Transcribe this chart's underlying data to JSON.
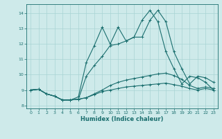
{
  "xlabel": "Humidex (Indice chaleur)",
  "bg_color": "#ceeaea",
  "line_color": "#1a6e6e",
  "grid_color": "#a8d4d4",
  "xlim": [
    -0.5,
    23.5
  ],
  "ylim": [
    7.8,
    14.6
  ],
  "yticks": [
    8,
    9,
    10,
    11,
    12,
    13,
    14
  ],
  "xticks": [
    0,
    1,
    2,
    3,
    4,
    5,
    6,
    7,
    8,
    9,
    10,
    11,
    12,
    13,
    14,
    15,
    16,
    17,
    18,
    19,
    20,
    21,
    22,
    23
  ],
  "series": [
    [
      9.0,
      9.05,
      8.75,
      8.6,
      8.35,
      8.35,
      8.4,
      8.5,
      8.7,
      8.9,
      9.0,
      9.1,
      9.2,
      9.25,
      9.3,
      9.35,
      9.4,
      9.45,
      9.35,
      9.25,
      9.1,
      9.0,
      9.1,
      9.0
    ],
    [
      9.0,
      9.05,
      8.75,
      8.6,
      8.35,
      8.35,
      8.4,
      8.5,
      8.75,
      9.0,
      9.3,
      9.5,
      9.65,
      9.75,
      9.85,
      9.95,
      10.05,
      10.1,
      9.95,
      9.7,
      9.3,
      9.1,
      9.2,
      9.1
    ],
    [
      9.0,
      9.05,
      8.75,
      8.6,
      8.35,
      8.35,
      8.4,
      9.9,
      10.6,
      11.2,
      11.9,
      12.0,
      12.2,
      12.45,
      12.45,
      13.55,
      14.2,
      13.45,
      11.5,
      10.4,
      9.4,
      9.9,
      9.8,
      9.5
    ],
    [
      9.0,
      9.05,
      8.75,
      8.6,
      8.35,
      8.35,
      8.55,
      10.8,
      11.9,
      13.1,
      12.0,
      13.1,
      12.2,
      12.45,
      13.55,
      14.2,
      13.45,
      11.5,
      10.4,
      9.4,
      9.9,
      9.8,
      9.5,
      9.0
    ]
  ]
}
